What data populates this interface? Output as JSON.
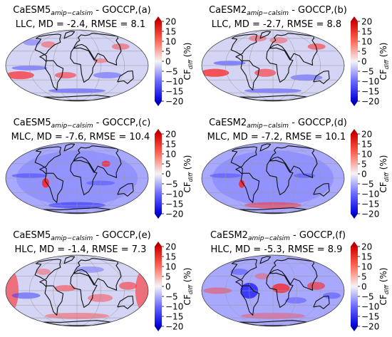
{
  "colors": {
    "neg": "#1f1fff",
    "zero": "#f0f0f0",
    "pos": "#ff1010"
  },
  "colorbar": {
    "ticks": [
      20,
      15,
      10,
      5,
      0,
      -5,
      -10,
      -15,
      -20
    ],
    "tick_labels": [
      "20",
      "15",
      "10",
      "5",
      "0",
      "−5",
      "−10",
      "−15",
      "−20"
    ],
    "label": "CF",
    "label_sub": "diff",
    "label_unit": "(%)",
    "range": [
      -20,
      20
    ]
  },
  "panels": [
    {
      "model": "CaESM5",
      "sub": "amip−calsim",
      "suffix": " - GOCCP,(a)",
      "stats": "LLC, MD = -2.4, RMSE = 8.1",
      "bias": -2.4,
      "rmse": 8.1,
      "layer": "LLC"
    },
    {
      "model": "CaESM2",
      "sub": "amip−calsim",
      "suffix": " - GOCCP,(b)",
      "stats": "LLC, MD = -2.7, RMSE = 8.8",
      "bias": -2.7,
      "rmse": 8.8,
      "layer": "LLC"
    },
    {
      "model": "CaESM5",
      "sub": "amip−calsim",
      "suffix": " - GOCCP,(c)",
      "stats": "MLC, MD = -7.6, RMSE = 10.4",
      "bias": -7.6,
      "rmse": 10.4,
      "layer": "MLC"
    },
    {
      "model": "CaESM2",
      "sub": "amip−calsim",
      "suffix": " - GOCCP,(d)",
      "stats": "MLC, MD = -7.2, RMSE = 10.1",
      "bias": -7.2,
      "rmse": 10.1,
      "layer": "MLC"
    },
    {
      "model": "CaESM5",
      "sub": "amip−calsim",
      "suffix": " - GOCCP,(e)",
      "stats": "HLC, MD = -1.4, RMSE = 7.3",
      "bias": -1.4,
      "rmse": 7.3,
      "layer": "HLC"
    },
    {
      "model": "CaESM2",
      "sub": "amip−calsim",
      "suffix": " - GOCCP,(f)",
      "stats": "HLC, MD = -5.3, RMSE = 8.9",
      "bias": -5.3,
      "rmse": 8.9,
      "layer": "HLC"
    }
  ]
}
